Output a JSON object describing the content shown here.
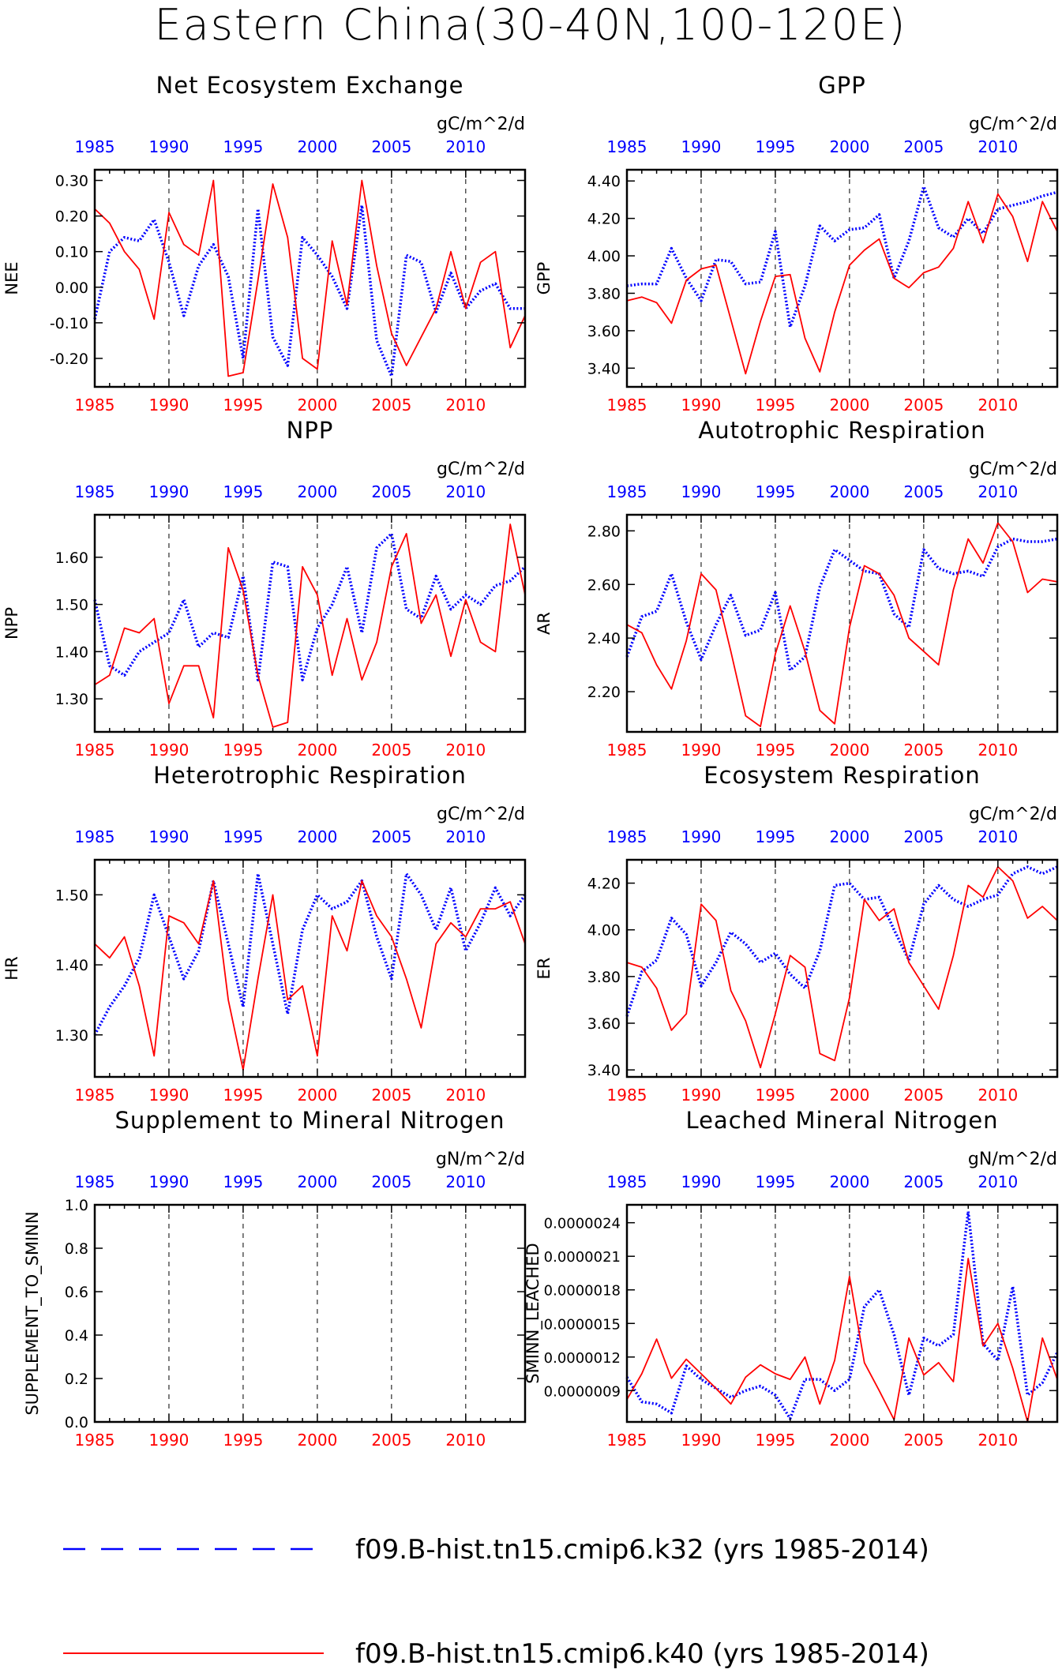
{
  "page": {
    "title": "Eastern China(30-40N,100-120E)"
  },
  "colors": {
    "k32": "#0000ff",
    "k40": "#ff0000",
    "axis": "#000000",
    "grid": "#000000"
  },
  "legend": {
    "entries": [
      {
        "label": "f09.B-hist.tn15.cmip6.k32 (yrs 1985-2014)",
        "color": "#0000ff",
        "style": "dashed"
      },
      {
        "label": "f09.B-hist.tn15.cmip6.k40 (yrs 1985-2014)",
        "color": "#ff0000",
        "style": "solid"
      }
    ]
  },
  "chart_data": [
    {
      "type": "line",
      "title": "Net Ecosystem Exchange",
      "units": "gC/m^2/d",
      "ylabel": "NEE",
      "xlim": [
        1985,
        2014
      ],
      "ylim": [
        -0.28,
        0.33
      ],
      "yticks": [
        -0.2,
        -0.1,
        0.0,
        0.1,
        0.2,
        0.3
      ],
      "yticklabels": [
        "-0.20",
        "-0.10",
        "0.00",
        "0.10",
        "0.20",
        "0.30"
      ],
      "xticks": [
        1985,
        1990,
        1995,
        2000,
        2005,
        2010
      ],
      "xticklabels": [
        "1985",
        "1990",
        "1995",
        "2000",
        "2005",
        "2010"
      ],
      "x": [
        1985,
        1986,
        1987,
        1988,
        1989,
        1990,
        1991,
        1992,
        1993,
        1994,
        1995,
        1996,
        1997,
        1998,
        1999,
        2000,
        2001,
        2002,
        2003,
        2004,
        2005,
        2006,
        2007,
        2008,
        2009,
        2010,
        2011,
        2012,
        2013,
        2014
      ],
      "series": [
        {
          "key": "k32",
          "values": [
            -0.09,
            0.1,
            0.14,
            0.13,
            0.19,
            0.07,
            -0.08,
            0.06,
            0.12,
            0.03,
            -0.2,
            0.22,
            -0.14,
            -0.22,
            0.14,
            0.09,
            0.03,
            -0.06,
            0.23,
            -0.15,
            -0.25,
            0.09,
            0.07,
            -0.07,
            0.04,
            -0.06,
            -0.01,
            0.01,
            -0.06,
            -0.06
          ]
        },
        {
          "key": "k40",
          "values": [
            0.22,
            0.18,
            0.1,
            0.05,
            -0.09,
            0.21,
            0.12,
            0.09,
            0.3,
            -0.25,
            -0.24,
            0.02,
            0.29,
            0.14,
            -0.2,
            -0.23,
            0.13,
            -0.05,
            0.3,
            0.06,
            -0.13,
            -0.22,
            -0.14,
            -0.06,
            0.1,
            -0.06,
            0.07,
            0.1,
            -0.17,
            -0.08
          ]
        }
      ]
    },
    {
      "type": "line",
      "title": "GPP",
      "units": "gC/m^2/d",
      "ylabel": "GPP",
      "xlim": [
        1985,
        2014
      ],
      "ylim": [
        3.3,
        4.46
      ],
      "yticks": [
        3.4,
        3.6,
        3.8,
        4.0,
        4.2,
        4.4
      ],
      "yticklabels": [
        "3.40",
        "3.60",
        "3.80",
        "4.00",
        "4.20",
        "4.40"
      ],
      "xticks": [
        1985,
        1990,
        1995,
        2000,
        2005,
        2010
      ],
      "xticklabels": [
        "1985",
        "1990",
        "1995",
        "2000",
        "2005",
        "2010"
      ],
      "x": [
        1985,
        1986,
        1987,
        1988,
        1989,
        1990,
        1991,
        1992,
        1993,
        1994,
        1995,
        1996,
        1997,
        1998,
        1999,
        2000,
        2001,
        2002,
        2003,
        2004,
        2005,
        2006,
        2007,
        2008,
        2009,
        2010,
        2011,
        2012,
        2013,
        2014
      ],
      "series": [
        {
          "key": "k32",
          "values": [
            3.84,
            3.85,
            3.85,
            4.04,
            3.88,
            3.76,
            3.98,
            3.97,
            3.85,
            3.86,
            4.13,
            3.62,
            3.84,
            4.16,
            4.08,
            4.14,
            4.15,
            4.22,
            3.88,
            4.08,
            4.37,
            4.15,
            4.1,
            4.2,
            4.12,
            4.25,
            4.27,
            4.29,
            4.32,
            4.34
          ]
        },
        {
          "key": "k40",
          "values": [
            3.76,
            3.78,
            3.75,
            3.64,
            3.87,
            3.93,
            3.95,
            3.66,
            3.37,
            3.65,
            3.89,
            3.9,
            3.56,
            3.38,
            3.7,
            3.95,
            4.03,
            4.09,
            3.88,
            3.83,
            3.91,
            3.94,
            4.04,
            4.29,
            4.07,
            4.33,
            4.21,
            3.97,
            4.29,
            4.13
          ]
        }
      ]
    },
    {
      "type": "line",
      "title": "NPP",
      "units": "gC/m^2/d",
      "ylabel": "NPP",
      "xlim": [
        1985,
        2014
      ],
      "ylim": [
        1.23,
        1.69
      ],
      "yticks": [
        1.3,
        1.4,
        1.5,
        1.6
      ],
      "yticklabels": [
        "1.30",
        "1.40",
        "1.50",
        "1.60"
      ],
      "xticks": [
        1985,
        1990,
        1995,
        2000,
        2005,
        2010
      ],
      "xticklabels": [
        "1985",
        "1990",
        "1995",
        "2000",
        "2005",
        "2010"
      ],
      "x": [
        1985,
        1986,
        1987,
        1988,
        1989,
        1990,
        1991,
        1992,
        1993,
        1994,
        1995,
        1996,
        1997,
        1998,
        1999,
        2000,
        2001,
        2002,
        2003,
        2004,
        2005,
        2006,
        2007,
        2008,
        2009,
        2010,
        2011,
        2012,
        2013,
        2014
      ],
      "series": [
        {
          "key": "k32",
          "values": [
            1.51,
            1.37,
            1.35,
            1.4,
            1.42,
            1.44,
            1.51,
            1.41,
            1.44,
            1.43,
            1.56,
            1.34,
            1.59,
            1.58,
            1.34,
            1.45,
            1.5,
            1.58,
            1.44,
            1.62,
            1.65,
            1.49,
            1.47,
            1.56,
            1.49,
            1.52,
            1.5,
            1.54,
            1.55,
            1.58
          ]
        },
        {
          "key": "k40",
          "values": [
            1.33,
            1.35,
            1.45,
            1.44,
            1.47,
            1.29,
            1.37,
            1.37,
            1.26,
            1.62,
            1.53,
            1.35,
            1.24,
            1.25,
            1.58,
            1.52,
            1.35,
            1.47,
            1.34,
            1.42,
            1.58,
            1.65,
            1.46,
            1.52,
            1.39,
            1.51,
            1.42,
            1.4,
            1.67,
            1.52
          ]
        }
      ]
    },
    {
      "type": "line",
      "title": "Autotrophic Respiration",
      "units": "gC/m^2/d",
      "ylabel": "AR",
      "xlim": [
        1985,
        2014
      ],
      "ylim": [
        2.05,
        2.86
      ],
      "yticks": [
        2.2,
        2.4,
        2.6,
        2.8
      ],
      "yticklabels": [
        "2.20",
        "2.40",
        "2.60",
        "2.80"
      ],
      "xticks": [
        1985,
        1990,
        1995,
        2000,
        2005,
        2010
      ],
      "xticklabels": [
        "1985",
        "1990",
        "1995",
        "2000",
        "2005",
        "2010"
      ],
      "x": [
        1985,
        1986,
        1987,
        1988,
        1989,
        1990,
        1991,
        1992,
        1993,
        1994,
        1995,
        1996,
        1997,
        1998,
        1999,
        2000,
        2001,
        2002,
        2003,
        2004,
        2005,
        2006,
        2007,
        2008,
        2009,
        2010,
        2011,
        2012,
        2013,
        2014
      ],
      "series": [
        {
          "key": "k32",
          "values": [
            2.33,
            2.48,
            2.5,
            2.64,
            2.46,
            2.32,
            2.45,
            2.56,
            2.41,
            2.43,
            2.57,
            2.28,
            2.33,
            2.59,
            2.73,
            2.69,
            2.65,
            2.64,
            2.49,
            2.44,
            2.73,
            2.66,
            2.64,
            2.65,
            2.63,
            2.74,
            2.77,
            2.76,
            2.76,
            2.77
          ]
        },
        {
          "key": "k40",
          "values": [
            2.45,
            2.42,
            2.3,
            2.21,
            2.39,
            2.64,
            2.58,
            2.35,
            2.11,
            2.07,
            2.34,
            2.52,
            2.35,
            2.13,
            2.08,
            2.44,
            2.67,
            2.64,
            2.56,
            2.4,
            2.35,
            2.3,
            2.58,
            2.77,
            2.68,
            2.83,
            2.76,
            2.57,
            2.62,
            2.61
          ]
        }
      ]
    },
    {
      "type": "line",
      "title": "Heterotrophic Respiration",
      "units": "gC/m^2/d",
      "ylabel": "HR",
      "xlim": [
        1985,
        2014
      ],
      "ylim": [
        1.24,
        1.55
      ],
      "yticks": [
        1.3,
        1.4,
        1.5
      ],
      "yticklabels": [
        "1.30",
        "1.40",
        "1.50"
      ],
      "xticks": [
        1985,
        1990,
        1995,
        2000,
        2005,
        2010
      ],
      "xticklabels": [
        "1985",
        "1990",
        "1995",
        "2000",
        "2005",
        "2010"
      ],
      "x": [
        1985,
        1986,
        1987,
        1988,
        1989,
        1990,
        1991,
        1992,
        1993,
        1994,
        1995,
        1996,
        1997,
        1998,
        1999,
        2000,
        2001,
        2002,
        2003,
        2004,
        2005,
        2006,
        2007,
        2008,
        2009,
        2010,
        2011,
        2012,
        2013,
        2014
      ],
      "series": [
        {
          "key": "k32",
          "values": [
            1.3,
            1.34,
            1.37,
            1.41,
            1.5,
            1.44,
            1.38,
            1.42,
            1.52,
            1.43,
            1.34,
            1.53,
            1.43,
            1.33,
            1.45,
            1.5,
            1.48,
            1.49,
            1.52,
            1.44,
            1.38,
            1.53,
            1.5,
            1.45,
            1.51,
            1.42,
            1.46,
            1.51,
            1.47,
            1.5
          ]
        },
        {
          "key": "k40",
          "values": [
            1.43,
            1.41,
            1.44,
            1.37,
            1.27,
            1.47,
            1.46,
            1.43,
            1.52,
            1.35,
            1.25,
            1.38,
            1.5,
            1.35,
            1.37,
            1.27,
            1.47,
            1.42,
            1.52,
            1.47,
            1.44,
            1.38,
            1.31,
            1.43,
            1.46,
            1.44,
            1.48,
            1.48,
            1.49,
            1.43
          ]
        }
      ]
    },
    {
      "type": "line",
      "title": "Ecosystem Respiration",
      "units": "gC/m^2/d",
      "ylabel": "ER",
      "xlim": [
        1985,
        2014
      ],
      "ylim": [
        3.37,
        4.3
      ],
      "yticks": [
        3.4,
        3.6,
        3.8,
        4.0,
        4.2
      ],
      "yticklabels": [
        "3.40",
        "3.60",
        "3.80",
        "4.00",
        "4.20"
      ],
      "xticks": [
        1985,
        1990,
        1995,
        2000,
        2005,
        2010
      ],
      "xticklabels": [
        "1985",
        "1990",
        "1995",
        "2000",
        "2005",
        "2010"
      ],
      "x": [
        1985,
        1986,
        1987,
        1988,
        1989,
        1990,
        1991,
        1992,
        1993,
        1994,
        1995,
        1996,
        1997,
        1998,
        1999,
        2000,
        2001,
        2002,
        2003,
        2004,
        2005,
        2006,
        2007,
        2008,
        2009,
        2010,
        2011,
        2012,
        2013,
        2014
      ],
      "series": [
        {
          "key": "k32",
          "values": [
            3.63,
            3.82,
            3.87,
            4.05,
            3.98,
            3.76,
            3.86,
            3.99,
            3.94,
            3.86,
            3.9,
            3.81,
            3.75,
            3.91,
            4.19,
            4.2,
            4.13,
            4.14,
            4.0,
            3.87,
            4.11,
            4.19,
            4.13,
            4.1,
            4.13,
            4.15,
            4.24,
            4.27,
            4.24,
            4.27
          ]
        },
        {
          "key": "k40",
          "values": [
            3.86,
            3.84,
            3.75,
            3.57,
            3.64,
            4.11,
            4.04,
            3.74,
            3.61,
            3.41,
            3.64,
            3.89,
            3.84,
            3.47,
            3.44,
            3.71,
            4.13,
            4.04,
            4.09,
            3.86,
            3.76,
            3.66,
            3.89,
            4.19,
            4.14,
            4.27,
            4.21,
            4.05,
            4.1,
            4.04
          ]
        }
      ]
    },
    {
      "type": "line",
      "title": "Supplement to Mineral Nitrogen",
      "units": "gN/m^2/d",
      "ylabel": "SUPPLEMENT_TO_SMINN",
      "xlim": [
        1985,
        2014
      ],
      "ylim": [
        0.0,
        1.0
      ],
      "yticks": [
        0.0,
        0.2,
        0.4,
        0.6,
        0.8,
        1.0
      ],
      "yticklabels": [
        "0.0",
        "0.2",
        "0.4",
        "0.6",
        "0.8",
        "1.0"
      ],
      "xticks": [
        1985,
        1990,
        1995,
        2000,
        2005,
        2010
      ],
      "xticklabels": [
        "1985",
        "1990",
        "1995",
        "2000",
        "2005",
        "2010"
      ],
      "x": [],
      "series": [
        {
          "key": "k32",
          "values": []
        },
        {
          "key": "k40",
          "values": []
        }
      ]
    },
    {
      "type": "line",
      "title": "Leached Mineral Nitrogen",
      "units": "gN/m^2/d",
      "ylabel": "SMINN_LEACHED",
      "xlim": [
        1985,
        2014
      ],
      "ylim": [
        6.2e-07,
        2.56e-06
      ],
      "yticks": [
        9e-07,
        1.2e-06,
        1.5e-06,
        1.8e-06,
        2.1e-06,
        2.4e-06
      ],
      "yticklabels": [
        "0.0000009",
        "0.0000012",
        "0.0000015",
        "0.0000018",
        "0.0000021",
        "0.0000024"
      ],
      "xticks": [
        1985,
        1990,
        1995,
        2000,
        2005,
        2010
      ],
      "xticklabels": [
        "1985",
        "1990",
        "1995",
        "2000",
        "2005",
        "2010"
      ],
      "x": [
        1985,
        1986,
        1987,
        1988,
        1989,
        1990,
        1991,
        1992,
        1993,
        1994,
        1995,
        1996,
        1997,
        1998,
        1999,
        2000,
        2001,
        2002,
        2003,
        2004,
        2005,
        2006,
        2007,
        2008,
        2009,
        2010,
        2011,
        2012,
        2013,
        2014
      ],
      "series": [
        {
          "key": "k32",
          "values": [
            1.02e-06,
            8e-07,
            7.8e-07,
            7e-07,
            1.12e-06,
            1e-06,
            9.2e-07,
            8.4e-07,
            9e-07,
            9.4e-07,
            8.6e-07,
            6.5e-07,
            1e-06,
            1e-06,
            9e-07,
            1e-06,
            1.65e-06,
            1.8e-06,
            1.4e-06,
            8.6e-07,
            1.37e-06,
            1.3e-06,
            1.4e-06,
            2.5e-06,
            1.32e-06,
            1.17e-06,
            1.83e-06,
            8.6e-07,
            9.7e-07,
            1.24e-06
          ]
        },
        {
          "key": "k40",
          "values": [
            8.2e-07,
            1.05e-06,
            1.36e-06,
            1.01e-06,
            1.18e-06,
            1.05e-06,
            9.2e-07,
            7.8e-07,
            1.02e-06,
            1.13e-06,
            1.05e-06,
            1e-06,
            1.2e-06,
            7.8e-07,
            1.17e-06,
            1.92e-06,
            1.15e-06,
            9e-07,
            6.4e-07,
            1.37e-06,
            1.04e-06,
            1.15e-06,
            9.8e-07,
            2.08e-06,
            1.3e-06,
            1.5e-06,
            1.1e-06,
            6.2e-07,
            1.37e-06,
            1e-06
          ]
        }
      ]
    }
  ]
}
